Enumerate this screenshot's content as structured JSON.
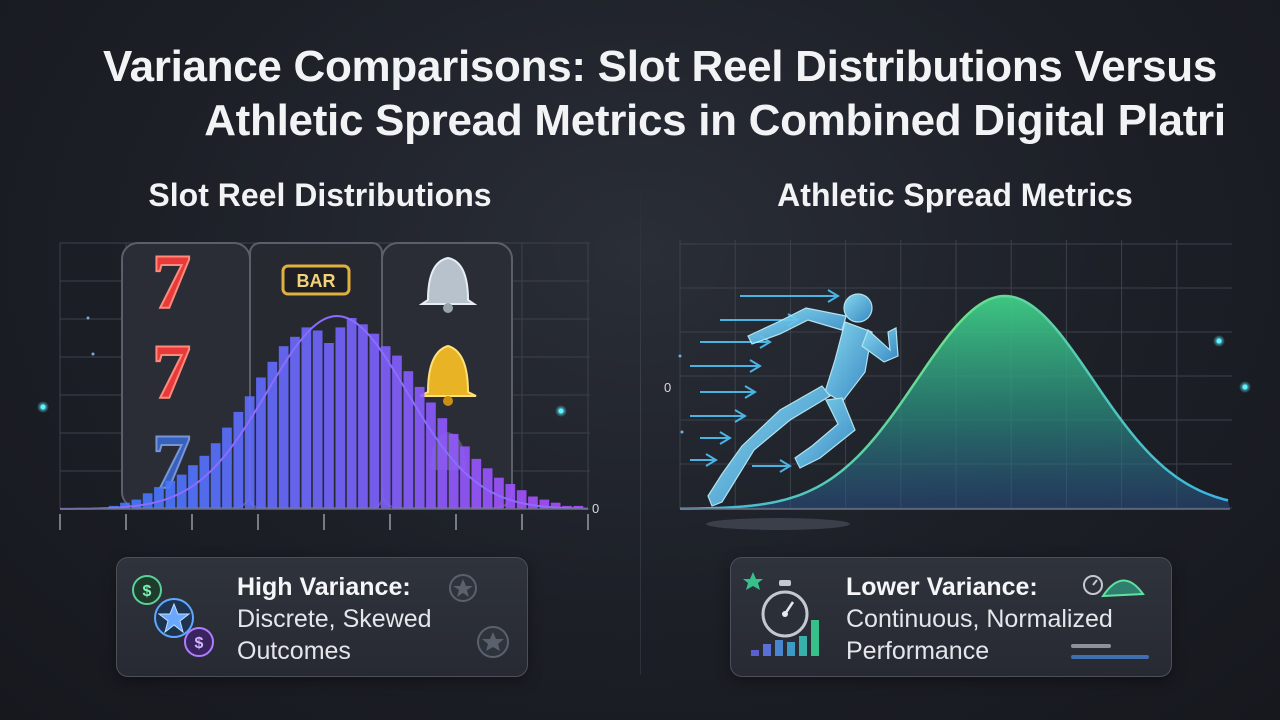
{
  "title": {
    "line1": "Variance Comparisons: Slot Reel Distributions Versus",
    "line2": "Athletic Spread Metrics in Combined Digital Platri"
  },
  "left_panel": {
    "title": "Slot Reel Distributions",
    "reel_text": "BAR",
    "axis_zero": "0",
    "card": {
      "heading": "High Variance:",
      "body": "Discrete, Skewed Outcomes"
    }
  },
  "right_panel": {
    "title": "Athletic Spread Metrics",
    "axis_zero": "0",
    "card": {
      "heading": "Lower Variance:",
      "body": "Continuous, Normalized Performance"
    }
  },
  "colors": {
    "bar_start": "#3f7bff",
    "bar_end": "#b04cff",
    "curve_left": "#8b6cff",
    "curve_right_start": "#6ee08a",
    "curve_right_end": "#39b3e6",
    "accent_cyan": "#2dd4e6"
  },
  "chart_data": [
    {
      "type": "bar",
      "title": "Slot Reel Distributions",
      "xlabel": "",
      "ylabel": "",
      "grid": true,
      "values": [
        1,
        2,
        3,
        5,
        7,
        9,
        11,
        14,
        17,
        21,
        26,
        31,
        36,
        42,
        47,
        52,
        55,
        58,
        57,
        53,
        58,
        61,
        59,
        56,
        52,
        49,
        44,
        39,
        34,
        29,
        24,
        20,
        16,
        13,
        10,
        8,
        6,
        4,
        3,
        2,
        1,
        1
      ],
      "overlay_curve": "normal",
      "annotation": "High Variance: Discrete, Skewed Outcomes"
    },
    {
      "type": "area",
      "title": "Athletic Spread Metrics",
      "xlabel": "",
      "ylabel": "",
      "grid": true,
      "distribution": "normal",
      "annotation": "Lower Variance: Continuous, Normalized Performance"
    }
  ]
}
